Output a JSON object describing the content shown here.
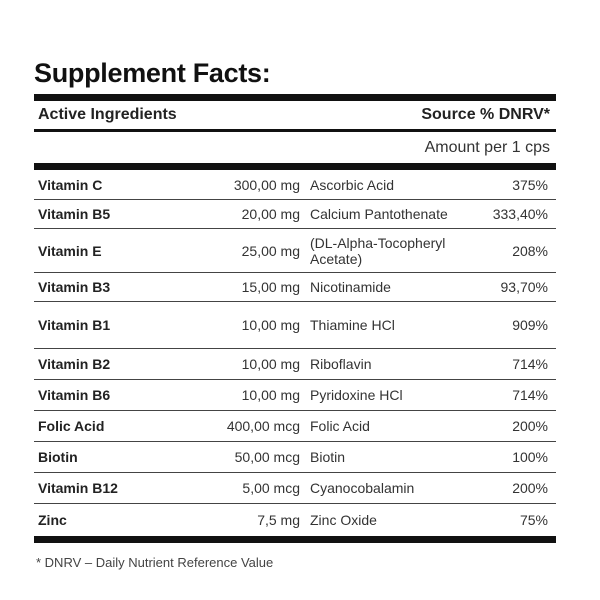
{
  "title": "Supplement Facts:",
  "header": {
    "active_ingredients": "Active Ingredients",
    "source_dnrv": "Source % DNRV*"
  },
  "amount_per": "Amount per 1 cps",
  "rows": [
    {
      "name": "Vitamin C",
      "amount": "300,00 mg",
      "source": "Ascorbic Acid",
      "dnrv": "375%"
    },
    {
      "name": "Vitamin B5",
      "amount": "20,00 mg",
      "source": "Calcium Pantothenate",
      "dnrv": "333,40%"
    },
    {
      "name": "Vitamin E",
      "amount": "25,00 mg",
      "source": "(DL-Alpha-Tocopheryl Acetate)",
      "dnrv": "208%"
    },
    {
      "name": "Vitamin B3",
      "amount": "15,00 mg",
      "source": "Nicotinamide",
      "dnrv": "93,70%"
    },
    {
      "name": "Vitamin B1",
      "amount": "10,00 mg",
      "source": "Thiamine HCl",
      "dnrv": "909%"
    },
    {
      "name": "Vitamin B2",
      "amount": "10,00 mg",
      "source": "Riboflavin",
      "dnrv": "714%"
    },
    {
      "name": "Vitamin B6",
      "amount": "10,00 mg",
      "source": "Pyridoxine HCl",
      "dnrv": "714%"
    },
    {
      "name": "Folic Acid",
      "amount": "400,00 mcg",
      "source": "Folic Acid",
      "dnrv": "200%"
    },
    {
      "name": "Biotin",
      "amount": "50,00 mcg",
      "source": "Biotin",
      "dnrv": "100%"
    },
    {
      "name": "Vitamin B12",
      "amount": "5,00 mcg",
      "source": "Cyanocobalamin",
      "dnrv": "200%"
    },
    {
      "name": "Zinc",
      "amount": "7,5 mg",
      "source": "Zinc Oxide",
      "dnrv": "75%"
    }
  ],
  "footnote": "* DNRV – Daily Nutrient Reference Value"
}
